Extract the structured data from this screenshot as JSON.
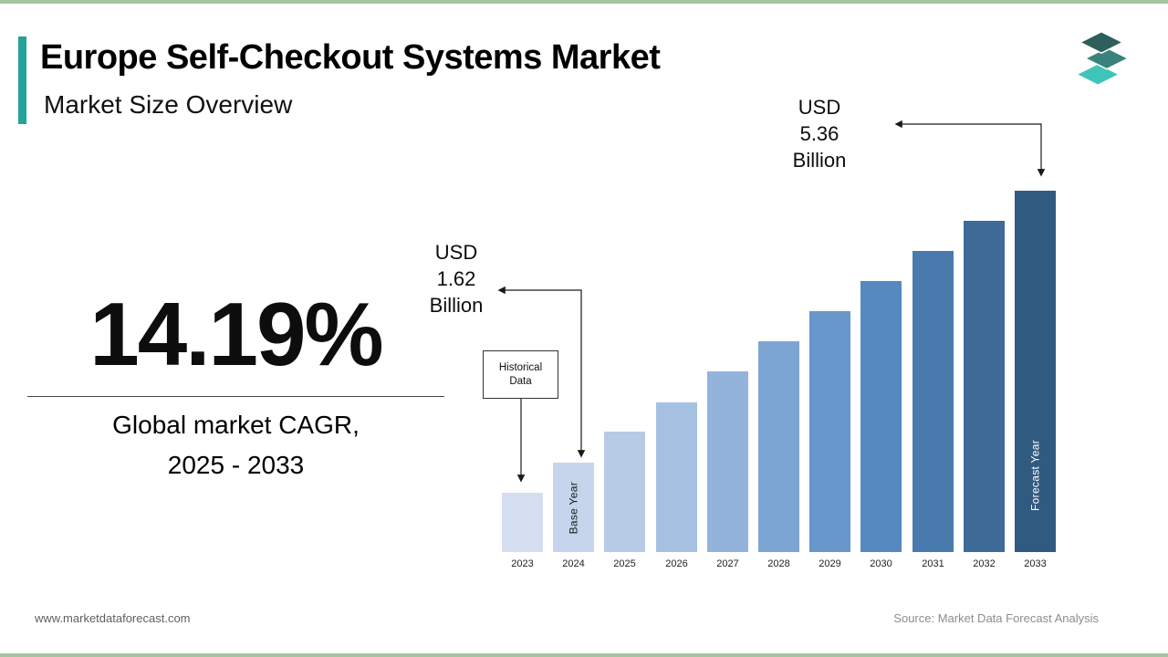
{
  "page": {
    "title": "Europe Self-Checkout Systems Market",
    "subtitle": "Market Size Overview",
    "accent_color": "#23a39a",
    "edge_line_color": "#a5c4a0",
    "footer": {
      "website": "www.marketdataforecast.com",
      "source": "Source: Market Data Forecast Analysis"
    }
  },
  "stat": {
    "value": "14.19%",
    "caption_line1": "Global market CAGR,",
    "caption_line2": "2025 - 2033"
  },
  "logo": {
    "alt": "Market Data Forecast logo",
    "layer_colors": [
      "#2e5f5c",
      "#3a837d",
      "#3fc4ba"
    ]
  },
  "chart_data": {
    "type": "bar",
    "title": "",
    "xlabel": "",
    "ylabel": "",
    "unit": "USD Billion",
    "categories": [
      "2023",
      "2024",
      "2025",
      "2026",
      "2027",
      "2028",
      "2029",
      "2030",
      "2031",
      "2032",
      "2033"
    ],
    "values": [
      1.2,
      1.62,
      2.04,
      2.45,
      2.87,
      3.28,
      3.7,
      4.11,
      4.53,
      4.94,
      5.36
    ],
    "labeled_values": {
      "2024": "USD 1.62 Billion",
      "2033": "USD 5.36 Billion"
    },
    "bar_colors": [
      "#d5def0",
      "#c6d5ec",
      "#b7cbe7",
      "#a6c0e2",
      "#93b3db",
      "#7da5d4",
      "#6797cb",
      "#5589c0",
      "#487aae",
      "#3d6a97",
      "#315a80"
    ],
    "annotations": [
      {
        "target": "2024",
        "lines": [
          "USD",
          "1.62",
          "Billion"
        ]
      },
      {
        "target": "2033",
        "lines": [
          "USD",
          "5.36",
          "Billion"
        ]
      }
    ],
    "in_bar_labels": [
      {
        "target": "2024",
        "text": "Base Year",
        "text_color": "#1a1a1a"
      },
      {
        "target": "2033",
        "text": "Forecast Year",
        "text_color": "#ffffff"
      }
    ],
    "historical_label": "Historical Data",
    "grid": false,
    "legend": false,
    "y_axis_visible": false,
    "x_ticks_visible": true
  }
}
